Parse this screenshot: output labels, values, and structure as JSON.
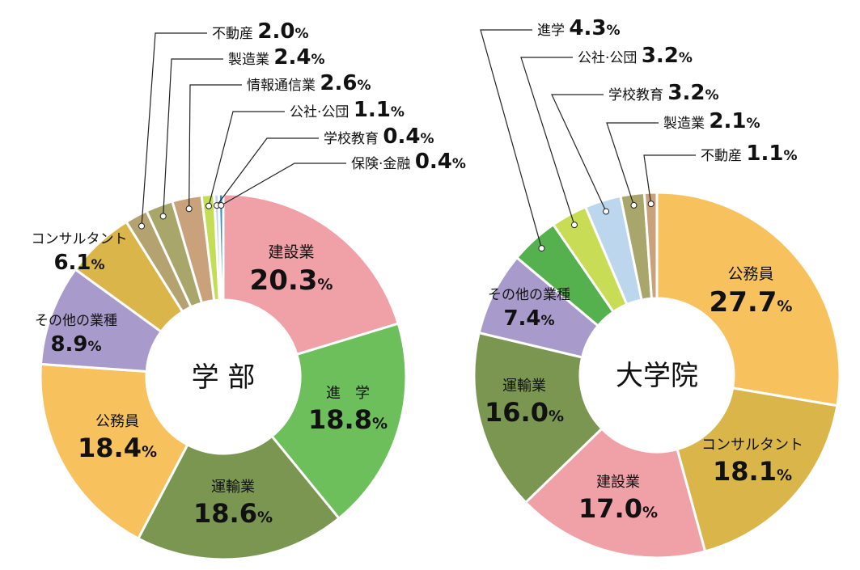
{
  "chart_data": [
    {
      "type": "pie",
      "center_label": "学 部",
      "colors": {
        "建設業": "#f0a0a7",
        "進学": "#6cbf5a",
        "運輸業": "#7a9650",
        "公務員": "#f7c25e",
        "その他の業種": "#a89bcc",
        "コンサルタント": "#d9b54a",
        "不動産": "#b5a271",
        "製造業": "#a8a66a",
        "情報通信業": "#c9a17a",
        "公社·公団": "#c4dd55",
        "学校教育": "#bcd6ee",
        "保険·金融": "#3e8fc0"
      },
      "slices": [
        {
          "name": "建設業",
          "display": "建設業",
          "value": 20.3
        },
        {
          "name": "進学",
          "display": "進　学",
          "value": 18.8
        },
        {
          "name": "運輸業",
          "display": "運輸業",
          "value": 18.6
        },
        {
          "name": "公務員",
          "display": "公務員",
          "value": 18.4
        },
        {
          "name": "その他の業種",
          "display": "その他の業種",
          "value": 8.9
        },
        {
          "name": "コンサルタント",
          "display": "コンサルタント",
          "value": 6.1
        },
        {
          "name": "不動産",
          "display": "不動産",
          "value": 2.0
        },
        {
          "name": "製造業",
          "display": "製造業",
          "value": 2.4
        },
        {
          "name": "情報通信業",
          "display": "情報通信業",
          "value": 2.6
        },
        {
          "name": "公社·公団",
          "display": "公社·公団",
          "value": 1.1
        },
        {
          "name": "学校教育",
          "display": "学校教育",
          "value": 0.4
        },
        {
          "name": "保険·金融",
          "display": "保険·金融",
          "value": 0.4
        }
      ]
    },
    {
      "type": "pie",
      "center_label": "大学院",
      "colors": {
        "公務員": "#f7c25e",
        "コンサルタント": "#d9b54a",
        "建設業": "#f0a0a7",
        "運輸業": "#7a9650",
        "その他の業種": "#a89bcc",
        "進学": "#55b04e",
        "公社·公団": "#c8dd55",
        "学校教育": "#bcd6ee",
        "製造業": "#a8a66a",
        "不動産": "#c9a17a"
      },
      "slices": [
        {
          "name": "公務員",
          "display": "公務員",
          "value": 27.7
        },
        {
          "name": "コンサルタント",
          "display": "コンサルタント",
          "value": 18.1
        },
        {
          "name": "建設業",
          "display": "建設業",
          "value": 17.0
        },
        {
          "name": "運輸業",
          "display": "運輸業",
          "value": 16.0
        },
        {
          "name": "その他の業種",
          "display": "その他の業種",
          "value": 7.4
        },
        {
          "name": "進学",
          "display": "進学",
          "value": 4.3
        },
        {
          "name": "公社·公団",
          "display": "公社·公団",
          "value": 3.2
        },
        {
          "name": "学校教育",
          "display": "学校教育",
          "value": 3.2
        },
        {
          "name": "製造業",
          "display": "製造業",
          "value": 2.1
        },
        {
          "name": "不動産",
          "display": "不動産",
          "value": 1.1
        }
      ]
    }
  ]
}
